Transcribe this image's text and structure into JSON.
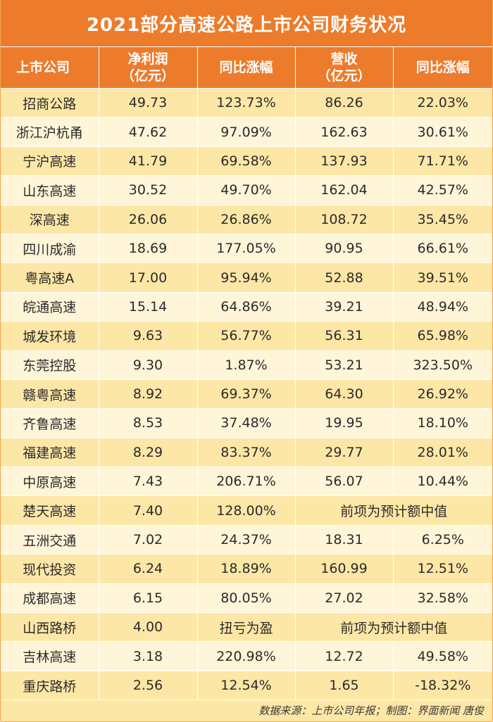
{
  "title": "2021部分高速公路上市公司财务状况",
  "headers": [
    "上市公司",
    "净利润\n（亿元）",
    "同比涨幅",
    "营收\n（亿元）",
    "同比涨幅"
  ],
  "rows": [
    [
      "招商公路",
      "49.73",
      "123.73%",
      "86.26",
      "22.03%"
    ],
    [
      "浙江沪杭甬",
      "47.62",
      "97.09%",
      "162.63",
      "30.61%"
    ],
    [
      "宁沪高速",
      "41.79",
      "69.58%",
      "137.93",
      "71.71%"
    ],
    [
      "山东高速",
      "30.52",
      "49.70%",
      "162.04",
      "42.57%"
    ],
    [
      "深高速",
      "26.06",
      "26.86%",
      "108.72",
      "35.45%"
    ],
    [
      "四川成渝",
      "18.69",
      "177.05%",
      "90.95",
      "66.61%"
    ],
    [
      "粤高速A",
      "17.00",
      "95.94%",
      "52.88",
      "39.51%"
    ],
    [
      "皖通高速",
      "15.14",
      "64.86%",
      "39.21",
      "48.94%"
    ],
    [
      "城发环境",
      "9.63",
      "56.77%",
      "56.31",
      "65.98%"
    ],
    [
      "东莞控股",
      "9.30",
      "1.87%",
      "53.21",
      "323.50%"
    ],
    [
      "赣粤高速",
      "8.92",
      "69.37%",
      "64.30",
      "26.92%"
    ],
    [
      "齐鲁高速",
      "8.53",
      "37.48%",
      "19.95",
      "18.10%"
    ],
    [
      "福建高速",
      "8.29",
      "83.37%",
      "29.77",
      "28.01%"
    ],
    [
      "中原高速",
      "7.43",
      "206.71%",
      "56.07",
      "10.44%"
    ],
    [
      "楚天高速",
      "7.40",
      "128.00%",
      "前项为预计额中值"
    ],
    [
      "五洲交通",
      "7.02",
      "24.37%",
      "18.31",
      "6.25%"
    ],
    [
      "现代投资",
      "6.24",
      "18.89%",
      "160.99",
      "12.51%"
    ],
    [
      "成都高速",
      "6.15",
      "80.05%",
      "27.02",
      "32.58%"
    ],
    [
      "山西路桥",
      "4.00",
      "扭亏为盈",
      "前项为预计额中值"
    ],
    [
      "吉林高速",
      "3.18",
      "220.98%",
      "12.72",
      "49.58%"
    ],
    [
      "重庆路桥",
      "2.56",
      "12.54%",
      "1.65",
      "-18.32%"
    ]
  ],
  "footer": "数据来源：上市公司年报；制图：界面新闻 唐俊",
  "colors": {
    "header_bg": "#ec7c2c",
    "row_dark": "#fde7a6",
    "row_light": "#fff5d9"
  }
}
